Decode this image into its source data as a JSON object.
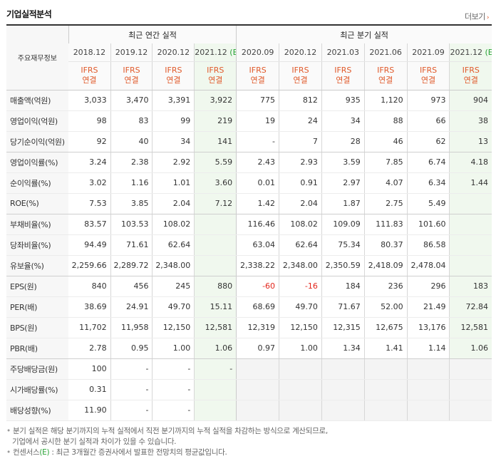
{
  "header": {
    "title": "기업실적분석",
    "more_label": "더보기",
    "more_chevron": "›"
  },
  "columns": {
    "row_label_header": "주요재무정보",
    "annual_header": "최근 연간 실적",
    "quarter_header": "최근 분기 실적",
    "annual": [
      {
        "period": "2018.12",
        "estimate": "",
        "basis1": "IFRS",
        "basis2": "연결"
      },
      {
        "period": "2019.12",
        "estimate": "",
        "basis1": "IFRS",
        "basis2": "연결"
      },
      {
        "period": "2020.12",
        "estimate": "",
        "basis1": "IFRS",
        "basis2": "연결"
      },
      {
        "period": "2021.12",
        "estimate": "(E)",
        "basis1": "IFRS",
        "basis2": "연결"
      }
    ],
    "quarter": [
      {
        "period": "2020.09",
        "estimate": "",
        "basis1": "IFRS",
        "basis2": "연결"
      },
      {
        "period": "2020.12",
        "estimate": "",
        "basis1": "IFRS",
        "basis2": "연결"
      },
      {
        "period": "2021.03",
        "estimate": "",
        "basis1": "IFRS",
        "basis2": "연결"
      },
      {
        "period": "2021.06",
        "estimate": "",
        "basis1": "IFRS",
        "basis2": "연결"
      },
      {
        "period": "2021.09",
        "estimate": "",
        "basis1": "IFRS",
        "basis2": "연결"
      },
      {
        "period": "2021.12",
        "estimate": "(E)",
        "basis1": "IFRS",
        "basis2": "연결"
      }
    ]
  },
  "rows": [
    {
      "label": "매출액(억원)",
      "annual": [
        "3,033",
        "3,470",
        "3,391",
        "3,922"
      ],
      "quarter": [
        "775",
        "812",
        "935",
        "1,120",
        "973",
        "904"
      ]
    },
    {
      "label": "영업이익(억원)",
      "annual": [
        "98",
        "83",
        "99",
        "219"
      ],
      "quarter": [
        "19",
        "24",
        "34",
        "88",
        "66",
        "38"
      ]
    },
    {
      "label": "당기순이익(억원)",
      "annual": [
        "92",
        "40",
        "34",
        "141"
      ],
      "quarter": [
        "-",
        "7",
        "28",
        "46",
        "62",
        "13"
      ]
    },
    {
      "label": "영업이익률(%)",
      "annual": [
        "3.24",
        "2.38",
        "2.92",
        "5.59"
      ],
      "quarter": [
        "2.43",
        "2.93",
        "3.59",
        "7.85",
        "6.74",
        "4.18"
      ]
    },
    {
      "label": "순이익률(%)",
      "annual": [
        "3.02",
        "1.16",
        "1.01",
        "3.60"
      ],
      "quarter": [
        "0.01",
        "0.91",
        "2.97",
        "4.07",
        "6.34",
        "1.44"
      ]
    },
    {
      "label": "ROE(%)",
      "annual": [
        "7.53",
        "3.85",
        "2.04",
        "7.12"
      ],
      "quarter": [
        "1.42",
        "2.04",
        "1.87",
        "2.75",
        "5.49",
        ""
      ]
    },
    {
      "label": "부채비율(%)",
      "annual": [
        "83.57",
        "103.53",
        "108.02",
        ""
      ],
      "quarter": [
        "116.46",
        "108.02",
        "109.09",
        "111.83",
        "101.60",
        ""
      ]
    },
    {
      "label": "당좌비율(%)",
      "annual": [
        "94.49",
        "71.61",
        "62.64",
        ""
      ],
      "quarter": [
        "63.04",
        "62.64",
        "75.34",
        "80.37",
        "86.58",
        ""
      ]
    },
    {
      "label": "유보율(%)",
      "annual": [
        "2,259.66",
        "2,289.72",
        "2,348.00",
        ""
      ],
      "quarter": [
        "2,338.22",
        "2,348.00",
        "2,350.59",
        "2,418.09",
        "2,478.04",
        ""
      ]
    },
    {
      "label": "EPS(원)",
      "annual": [
        "840",
        "456",
        "245",
        "880"
      ],
      "quarter": [
        "-60",
        "-16",
        "184",
        "236",
        "296",
        "183"
      ]
    },
    {
      "label": "PER(배)",
      "annual": [
        "38.69",
        "24.91",
        "49.70",
        "15.11"
      ],
      "quarter": [
        "68.69",
        "49.70",
        "71.67",
        "52.00",
        "21.49",
        "72.84"
      ]
    },
    {
      "label": "BPS(원)",
      "annual": [
        "11,702",
        "11,958",
        "12,150",
        "12,581"
      ],
      "quarter": [
        "12,319",
        "12,150",
        "12,315",
        "12,675",
        "13,176",
        "12,581"
      ]
    },
    {
      "label": "PBR(배)",
      "annual": [
        "2.78",
        "0.95",
        "1.00",
        "1.06"
      ],
      "quarter": [
        "0.97",
        "1.00",
        "1.34",
        "1.41",
        "1.14",
        "1.06"
      ]
    },
    {
      "label": "주당배당금(원)",
      "annual": [
        "100",
        "-",
        "-",
        "-"
      ],
      "quarter": [
        "",
        "",
        "",
        "",
        "",
        ""
      ]
    },
    {
      "label": "시가배당률(%)",
      "annual": [
        "0.31",
        "-",
        "-",
        ""
      ],
      "quarter": [
        "",
        "",
        "",
        "",
        "",
        ""
      ]
    },
    {
      "label": "배당성향(%)",
      "annual": [
        "11.90",
        "-",
        "-",
        ""
      ],
      "quarter": [
        "",
        "",
        "",
        "",
        "",
        ""
      ]
    }
  ],
  "group_end_rows": [
    2,
    5,
    8,
    12
  ],
  "notes": {
    "line1": "분기 실적은 해당 분기까지의 누적 실적에서 직전 분기까지의 누적 실적을 차감하는 방식으로 계산되므로,",
    "line2": "기업에서 공시한 분기 실적과 차이가 있을 수 있습니다.",
    "line3_pre": "컨센서스",
    "line3_e": "(E)",
    "line3_post": ": 최근 3개월간 증권사에서 발표한 전망치의 평균값입니다."
  },
  "colors": {
    "accent": "#e0592a",
    "estimate": "#27a234",
    "negative": "#e3261c",
    "estimate_bg": "#f0f8ee"
  }
}
